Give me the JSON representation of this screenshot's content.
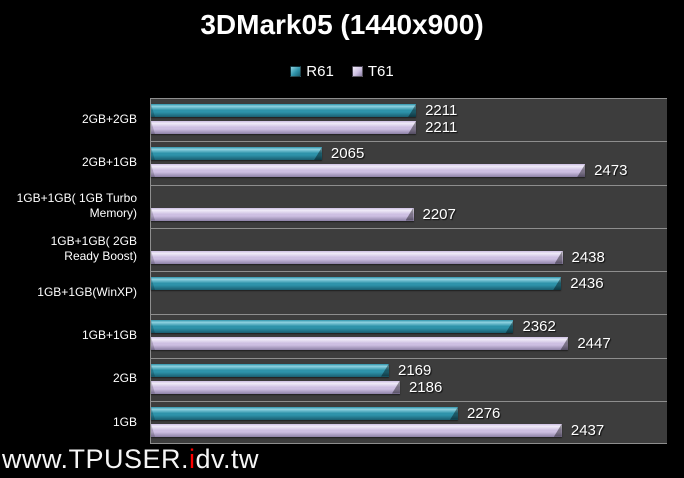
{
  "header": {
    "title": "3DMark05 (1440x900)"
  },
  "watermark": {
    "prefix": "www.TPUSER.",
    "highlight": "i",
    "suffix": "dv.tw"
  },
  "colors": {
    "background": "#000000",
    "plot_band": "#3D3D3D",
    "gridline": "#8E8E8E",
    "title_text": "#FFFFFF",
    "category_text": "#FFFFFF",
    "value_text": "#FFFFFF",
    "watermark_text": "#F5F5F5",
    "watermark_highlight": "#FF0000",
    "r61_main": "#2E93AA",
    "t61_main": "#CDBFE2"
  },
  "chart_data": {
    "type": "bar",
    "orientation": "horizontal",
    "title": "3DMark05 (1440x900)",
    "legend_position": "top",
    "grid": "category-dividers-only",
    "value_axis": {
      "min": 1800,
      "max": 2600,
      "ticks_visible": false
    },
    "categories": [
      "2GB+2GB",
      "2GB+1GB",
      "1GB+1GB( 1GB Turbo Memory)",
      "1GB+1GB( 2GB Ready Boost)",
      "1GB+1GB(WinXP)",
      "1GB+1GB",
      "2GB",
      "1GB"
    ],
    "series": [
      {
        "name": "R61",
        "color_main": "#2E93AA",
        "color_light": "#8FD2E0",
        "color_dark": "#1A5E70",
        "values": [
          2211,
          2065,
          null,
          null,
          2436,
          2362,
          2169,
          2276
        ]
      },
      {
        "name": "T61",
        "color_main": "#CDBFE2",
        "color_light": "#F0EBF8",
        "color_dark": "#8D81A6",
        "values": [
          2211,
          2473,
          2207,
          2438,
          null,
          2447,
          2186,
          2437
        ]
      }
    ]
  }
}
